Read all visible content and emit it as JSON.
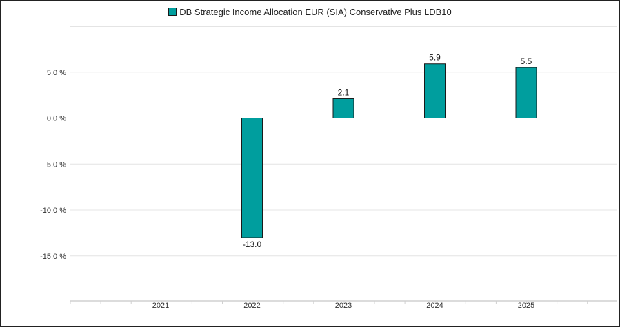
{
  "chart_data": {
    "type": "bar",
    "legend_position": "top-center",
    "grid": true,
    "colors": {
      "bar": "#009e9e",
      "bar_edge": "#1a1a1a",
      "grid": "#e4e4e4"
    },
    "categories": [
      "2021",
      "2022",
      "2023",
      "2024",
      "2025"
    ],
    "series": [
      {
        "name": "DB Strategic Income Allocation EUR (SIA) Conservative Plus LDB10",
        "values": [
          null,
          -13.0,
          2.1,
          5.9,
          5.5
        ],
        "value_labels": [
          "",
          "-13.0",
          "2.1",
          "5.9",
          "5.5"
        ]
      }
    ],
    "ylim": [
      -20,
      10
    ],
    "yticks": [
      5,
      0,
      -5,
      -10,
      -15
    ],
    "ytick_labels": [
      "5.0 %",
      "0.0 %",
      "-5.0 %",
      "-10.0 %",
      "-15.0 %"
    ]
  }
}
